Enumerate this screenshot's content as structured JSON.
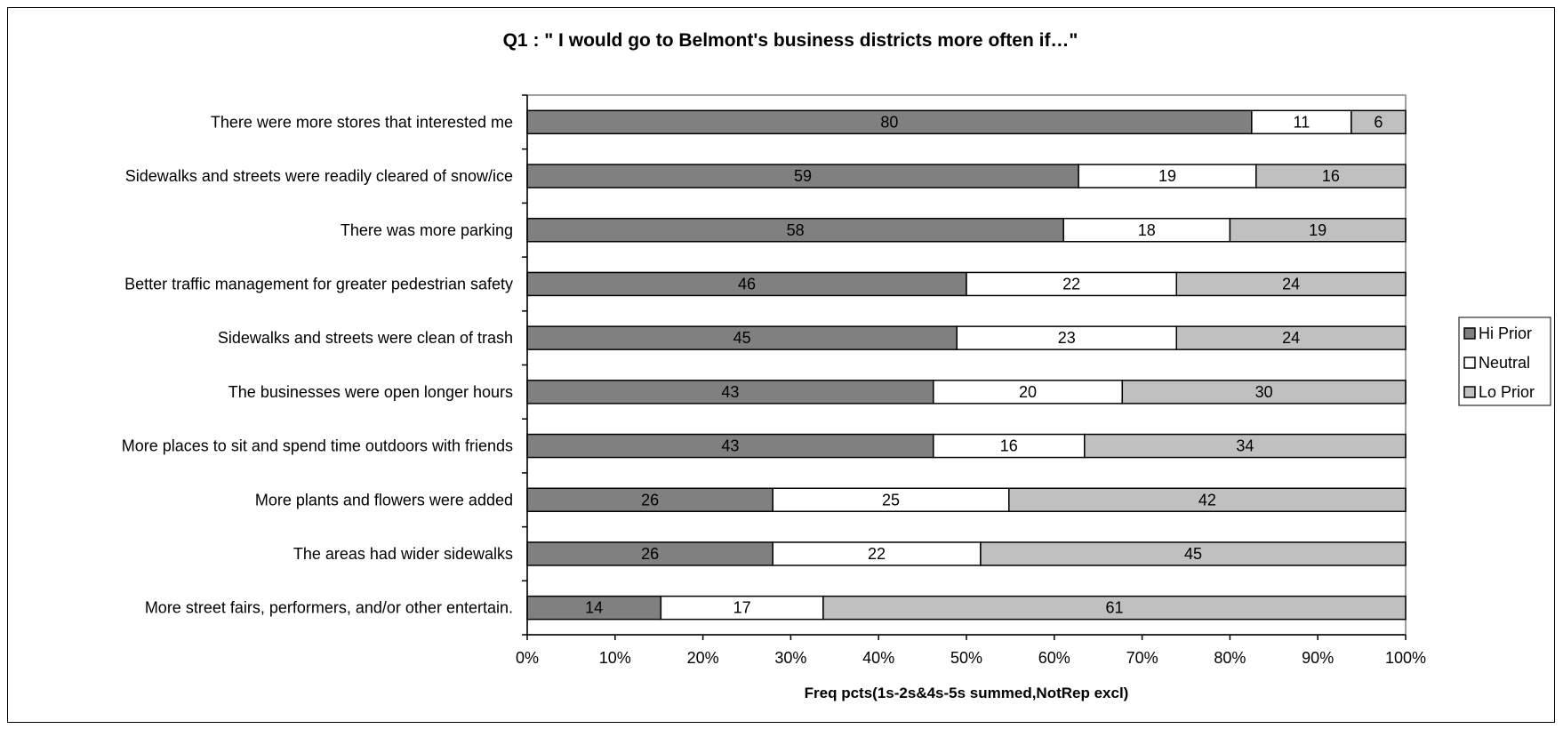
{
  "chart_data": {
    "type": "bar",
    "orientation": "horizontal",
    "stacked": "percent",
    "title": "Q1 : \" I would go to Belmont's business districts more often if…\"",
    "xlabel": "Freq pcts(1s-2s&4s-5s summed,NotRep excl)",
    "ylabel": "",
    "xlim": [
      0,
      100
    ],
    "x_ticks": [
      "0%",
      "10%",
      "20%",
      "30%",
      "40%",
      "50%",
      "60%",
      "70%",
      "80%",
      "90%",
      "100%"
    ],
    "categories": [
      "There were more stores that interested me",
      "Sidewalks and streets were readily cleared of snow/ice",
      "There was more parking",
      "Better traffic management for greater pedestrian safety",
      "Sidewalks and streets were clean of trash",
      "The businesses were open longer hours",
      "More places to sit and spend time outdoors with friends",
      "More plants and flowers were added",
      "The areas had wider sidewalks",
      "More street fairs, performers, and/or other entertain."
    ],
    "series": [
      {
        "name": "Hi Prior",
        "color": "#808080",
        "values": [
          80,
          59,
          58,
          46,
          45,
          43,
          43,
          26,
          26,
          14
        ]
      },
      {
        "name": "Neutral",
        "color": "#ffffff",
        "values": [
          11,
          19,
          18,
          22,
          23,
          20,
          16,
          25,
          22,
          17
        ]
      },
      {
        "name": "Lo Prior",
        "color": "#c0c0c0",
        "values": [
          6,
          16,
          19,
          24,
          24,
          30,
          34,
          42,
          45,
          61
        ]
      }
    ],
    "legend_position": "right",
    "grid": false
  }
}
